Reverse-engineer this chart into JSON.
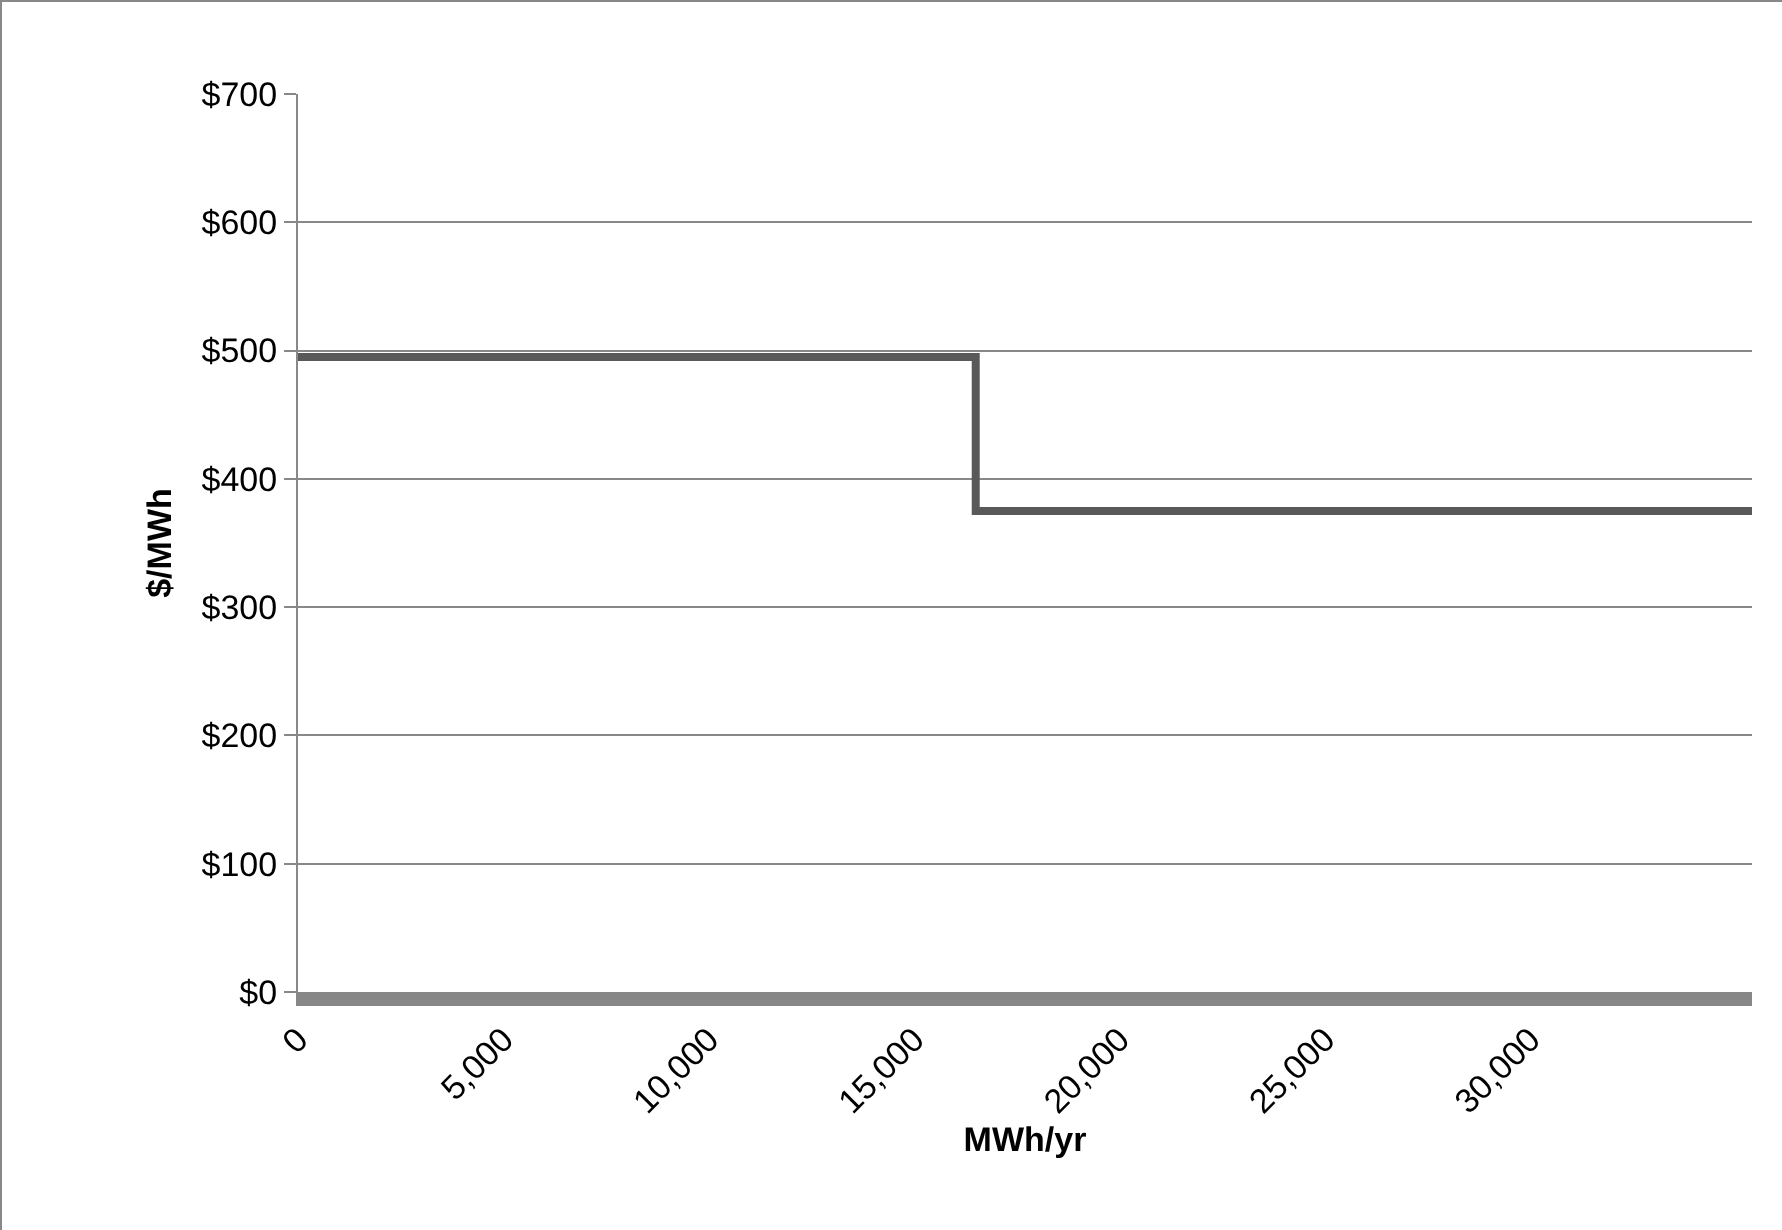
{
  "chart_data": {
    "type": "step",
    "xlabel": "MWh/yr",
    "ylabel": "$/MWh",
    "x": [
      0,
      16500,
      35400
    ],
    "series": [
      {
        "color": "#595959",
        "values": [
          495,
          375,
          375
        ]
      }
    ],
    "xlim": [
      0,
      35400
    ],
    "xticks": [
      {
        "value": 0,
        "label": "0"
      },
      {
        "value": 5000,
        "label": "5,000"
      },
      {
        "value": 10000,
        "label": "10,000"
      },
      {
        "value": 15000,
        "label": "15,000"
      },
      {
        "value": 20000,
        "label": "20,000"
      },
      {
        "value": 25000,
        "label": "25,000"
      },
      {
        "value": 30000,
        "label": "30,000"
      }
    ],
    "ylim": [
      0,
      700
    ],
    "yticks": [
      {
        "value": 0,
        "label": "$0"
      },
      {
        "value": 100,
        "label": "$100"
      },
      {
        "value": 200,
        "label": "$200"
      },
      {
        "value": 300,
        "label": "$300"
      },
      {
        "value": 400,
        "label": "$400"
      },
      {
        "value": 500,
        "label": "$500"
      },
      {
        "value": 600,
        "label": "$600"
      },
      {
        "value": 700,
        "label": "$700"
      }
    ],
    "grid": "y",
    "line_style": "solid",
    "marker": "none"
  }
}
